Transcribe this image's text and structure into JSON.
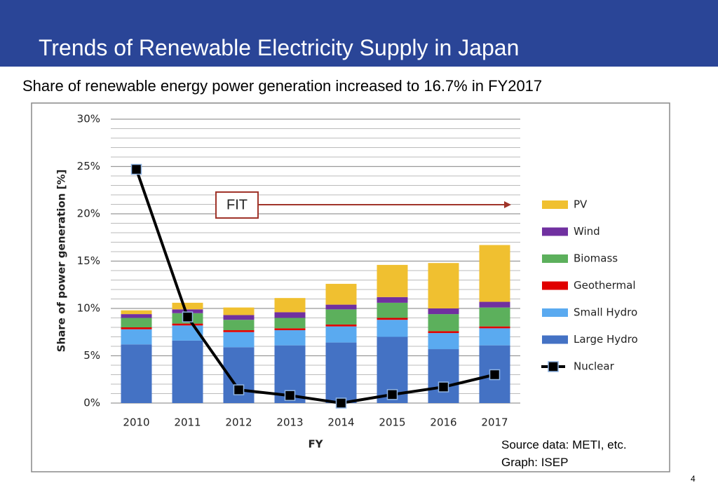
{
  "slide": {
    "title": "Trends of Renewable Electricity Supply in Japan",
    "subtitle": "Share of renewable energy power generation increased to 16.7% in FY2017",
    "source": [
      "Source data: METI, etc.",
      "Graph: ISEP"
    ],
    "page_number": "4"
  },
  "chart_data": {
    "type": "bar",
    "stacked": true,
    "categories": [
      "2010",
      "2011",
      "2012",
      "2013",
      "2014",
      "2015",
      "2016",
      "2017"
    ],
    "series": [
      {
        "name": "Large Hydro",
        "color": "#4472c4",
        "values": [
          6.2,
          6.6,
          5.9,
          6.1,
          6.4,
          7.0,
          5.7,
          6.1
        ]
      },
      {
        "name": "Small Hydro",
        "color": "#5aaaf0",
        "values": [
          1.6,
          1.6,
          1.6,
          1.6,
          1.7,
          1.8,
          1.7,
          1.8
        ]
      },
      {
        "name": "Geothermal",
        "color": "#e00000",
        "values": [
          0.2,
          0.2,
          0.2,
          0.2,
          0.2,
          0.2,
          0.2,
          0.2
        ]
      },
      {
        "name": "Biomass",
        "color": "#5cb05c",
        "values": [
          1.0,
          1.1,
          1.1,
          1.1,
          1.6,
          1.6,
          1.8,
          2.0
        ]
      },
      {
        "name": "Wind",
        "color": "#7030a0",
        "values": [
          0.4,
          0.4,
          0.5,
          0.6,
          0.5,
          0.6,
          0.6,
          0.6
        ]
      },
      {
        "name": "PV",
        "color": "#f0c030",
        "values": [
          0.4,
          0.7,
          0.8,
          1.5,
          2.2,
          3.4,
          4.8,
          6.0
        ]
      },
      {
        "name": "Nuclear",
        "type": "line",
        "color": "#000000",
        "values": [
          24.7,
          9.1,
          1.4,
          0.8,
          0,
          0.9,
          1.7,
          3.0
        ]
      }
    ],
    "xlabel": "FY",
    "ylabel": "Share of power generation [%]",
    "ylim": [
      0,
      30
    ],
    "yticks": [
      {
        "value": 0,
        "label": "0%"
      },
      {
        "value": 5,
        "label": "5%"
      },
      {
        "value": 10,
        "label": "10%"
      },
      {
        "value": 15,
        "label": "15%"
      },
      {
        "value": 20,
        "label": "20%"
      },
      {
        "value": 25,
        "label": "25%"
      },
      {
        "value": 30,
        "label": "30%"
      }
    ],
    "minor_yticks": [
      1,
      2,
      3,
      4,
      6,
      7,
      8,
      9,
      11,
      12,
      13,
      14,
      16,
      17,
      18,
      19,
      21,
      22,
      23,
      24,
      26,
      27,
      28,
      29
    ],
    "grid": true,
    "legend": "right",
    "annotation": "FIT"
  }
}
